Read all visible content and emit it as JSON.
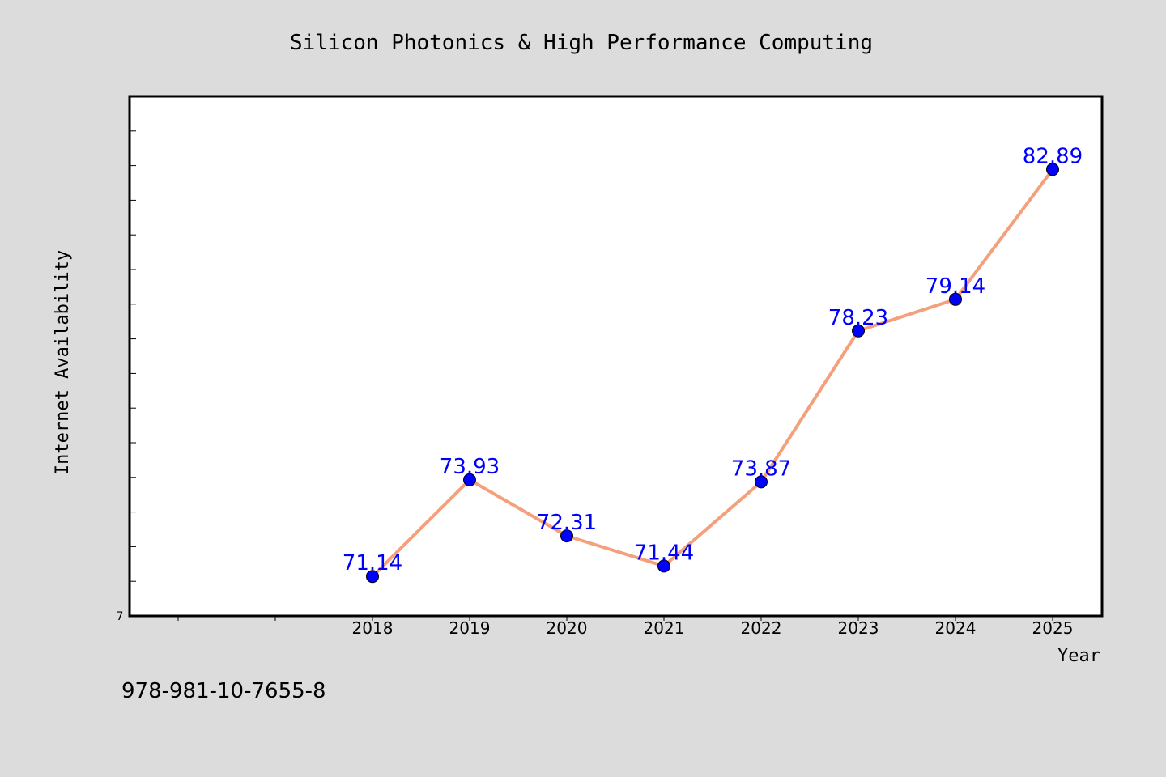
{
  "chart_data": {
    "type": "line",
    "title": "Silicon Photonics & High Performance Computing",
    "xlabel": "Year",
    "ylabel": "Internet Availability",
    "x": [
      "2018",
      "2019",
      "2020",
      "2021",
      "2022",
      "2023",
      "2024",
      "2025"
    ],
    "series": [
      {
        "values": [
          71.14,
          73.93,
          72.31,
          71.44,
          73.87,
          78.23,
          79.14,
          82.89
        ],
        "labels": [
          "71.14",
          "73.93",
          "72.31",
          "71.44",
          "73.87",
          "78.23",
          "79.14",
          "82.89"
        ]
      }
    ],
    "ylim": [
      70,
      85
    ],
    "ytick_label_min": "7",
    "grid": false,
    "legend": "none",
    "colors": {
      "line": "#f4a07c",
      "marker": "#0000ff",
      "data_label": "#0000ff",
      "plot_background": "#ffffff",
      "page_background": "#dcdcdc"
    }
  },
  "footnote": "978-981-10-7655-8"
}
